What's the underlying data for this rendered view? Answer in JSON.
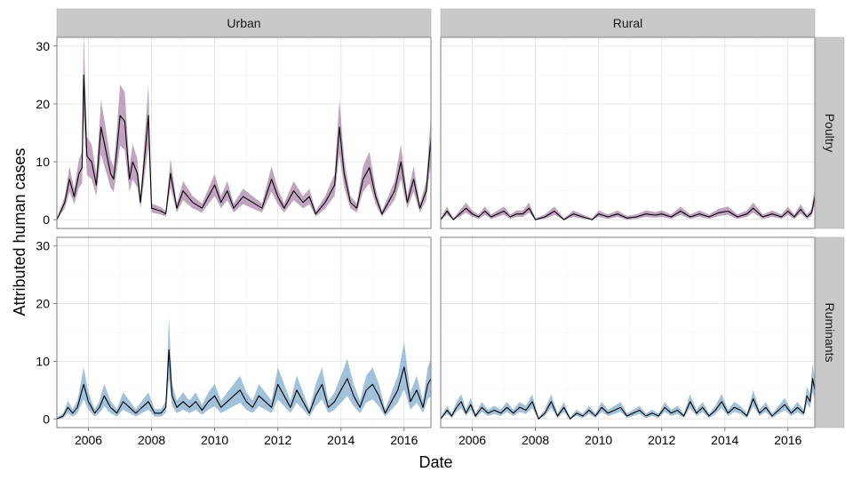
{
  "chart_data": {
    "type": "line",
    "facet_columns": [
      "Urban",
      "Rural"
    ],
    "facet_rows": [
      "Poultry",
      "Ruminants"
    ],
    "xlabel": "Date",
    "ylabel": "Attributed human cases",
    "x_ticks": [
      "2006",
      "2008",
      "2010",
      "2012",
      "2014",
      "2016"
    ],
    "x_range": [
      2005.0,
      2016.85
    ],
    "y_ticks": [
      0,
      10,
      20,
      30
    ],
    "ylim": [
      -1.5,
      31.5
    ],
    "grid": true,
    "legend": "none",
    "band": "uncertainty interval around median line",
    "colors": {
      "Poultry": "#a57ea5",
      "Ruminants": "#7ba7cb",
      "line": "#000000",
      "strip": "#c9c9c9",
      "panel_border": "#7f7f7f",
      "grid": "#ececec"
    },
    "series": [
      {
        "column": "Urban",
        "row": "Poultry",
        "x": [
          2005.0,
          2005.25,
          2005.4,
          2005.55,
          2005.7,
          2005.8,
          2005.85,
          2005.95,
          2006.1,
          2006.25,
          2006.4,
          2006.55,
          2006.7,
          2006.8,
          2006.9,
          2007.0,
          2007.15,
          2007.3,
          2007.4,
          2007.55,
          2007.65,
          2007.8,
          2007.9,
          2008.0,
          2008.3,
          2008.45,
          2008.6,
          2008.8,
          2009.0,
          2009.3,
          2009.6,
          2009.8,
          2010.0,
          2010.2,
          2010.4,
          2010.6,
          2010.9,
          2011.2,
          2011.5,
          2011.8,
          2012.0,
          2012.2,
          2012.5,
          2012.8,
          2013.0,
          2013.2,
          2013.5,
          2013.8,
          2013.95,
          2014.1,
          2014.3,
          2014.5,
          2014.7,
          2014.9,
          2015.1,
          2015.3,
          2015.5,
          2015.7,
          2015.9,
          2016.1,
          2016.3,
          2016.5,
          2016.7,
          2016.85
        ],
        "y": [
          0,
          3,
          7,
          4,
          8,
          9,
          25,
          11,
          10,
          6,
          16,
          12,
          8,
          7,
          12,
          18,
          17,
          7,
          10,
          8,
          3,
          12,
          18,
          2,
          1.5,
          1,
          8,
          2,
          5,
          3,
          2,
          4,
          6,
          3,
          5,
          2,
          4,
          3,
          2,
          7,
          4,
          2,
          5,
          3,
          4,
          1,
          3,
          6,
          16,
          8,
          3,
          2,
          7,
          9,
          4,
          1,
          3,
          5,
          10,
          3,
          7,
          2,
          5,
          14
        ],
        "lower_pct": 0.72,
        "upper_pct": 1.28
      },
      {
        "column": "Rural",
        "row": "Poultry",
        "x": [
          2005.0,
          2005.2,
          2005.4,
          2005.6,
          2005.8,
          2006.0,
          2006.2,
          2006.4,
          2006.6,
          2006.8,
          2007.0,
          2007.2,
          2007.4,
          2007.6,
          2007.8,
          2008.0,
          2008.3,
          2008.6,
          2008.9,
          2009.2,
          2009.5,
          2009.8,
          2010.0,
          2010.3,
          2010.6,
          2010.9,
          2011.2,
          2011.5,
          2011.8,
          2012.0,
          2012.3,
          2012.6,
          2012.9,
          2013.2,
          2013.5,
          2013.8,
          2014.1,
          2014.4,
          2014.7,
          2014.9,
          2015.2,
          2015.5,
          2015.8,
          2016.0,
          2016.2,
          2016.4,
          2016.6,
          2016.75,
          2016.85
        ],
        "y": [
          0,
          1.5,
          0,
          1,
          2,
          1,
          0.5,
          1.5,
          0.5,
          1,
          1.5,
          0.5,
          1,
          1,
          2,
          0,
          0.5,
          1.5,
          0,
          1,
          0.5,
          0,
          1,
          0.5,
          1,
          0.3,
          0.5,
          1,
          0.8,
          1,
          0.5,
          1.5,
          0.5,
          1,
          0.5,
          1.2,
          1.5,
          0.5,
          1,
          2,
          0.5,
          1,
          0.5,
          1.5,
          0.5,
          1.8,
          0.5,
          1.2,
          4
        ],
        "lower_pct": 0.7,
        "upper_pct": 1.35
      },
      {
        "column": "Urban",
        "row": "Ruminants",
        "x": [
          2005.0,
          2005.2,
          2005.35,
          2005.5,
          2005.65,
          2005.85,
          2006.0,
          2006.2,
          2006.35,
          2006.5,
          2006.7,
          2006.9,
          2007.1,
          2007.3,
          2007.5,
          2007.7,
          2007.9,
          2008.1,
          2008.3,
          2008.45,
          2008.55,
          2008.65,
          2008.8,
          2009.0,
          2009.2,
          2009.4,
          2009.6,
          2009.8,
          2010.0,
          2010.2,
          2010.4,
          2010.6,
          2010.8,
          2011.0,
          2011.2,
          2011.4,
          2011.6,
          2011.8,
          2012.0,
          2012.2,
          2012.4,
          2012.6,
          2012.8,
          2013.0,
          2013.2,
          2013.4,
          2013.6,
          2013.8,
          2014.0,
          2014.2,
          2014.4,
          2014.6,
          2014.8,
          2015.0,
          2015.2,
          2015.4,
          2015.6,
          2015.8,
          2016.0,
          2016.2,
          2016.4,
          2016.6,
          2016.75,
          2016.85
        ],
        "y": [
          0,
          0.5,
          2,
          1,
          2,
          6,
          3,
          1,
          2,
          4,
          2,
          1,
          3,
          2,
          1,
          2,
          3,
          1,
          1,
          2,
          12,
          4,
          2,
          3,
          2,
          3,
          1.5,
          3,
          4,
          2,
          3,
          4,
          5,
          3,
          2,
          4,
          3,
          2,
          6,
          4,
          2,
          5,
          3,
          1,
          4,
          6,
          2,
          3,
          5,
          7,
          4,
          2,
          5,
          6,
          4,
          1,
          3,
          5,
          9,
          3,
          5,
          2,
          6,
          7
        ],
        "lower_pct": 0.6,
        "upper_pct": 1.45
      },
      {
        "column": "Rural",
        "row": "Ruminants",
        "x": [
          2005.0,
          2005.2,
          2005.35,
          2005.5,
          2005.65,
          2005.8,
          2005.95,
          2006.1,
          2006.3,
          2006.5,
          2006.7,
          2006.9,
          2007.1,
          2007.3,
          2007.5,
          2007.7,
          2007.9,
          2008.1,
          2008.3,
          2008.5,
          2008.7,
          2008.9,
          2009.1,
          2009.3,
          2009.5,
          2009.7,
          2009.9,
          2010.1,
          2010.3,
          2010.5,
          2010.7,
          2010.9,
          2011.1,
          2011.3,
          2011.5,
          2011.7,
          2011.9,
          2012.1,
          2012.3,
          2012.5,
          2012.7,
          2012.9,
          2013.1,
          2013.3,
          2013.5,
          2013.7,
          2013.9,
          2014.1,
          2014.3,
          2014.5,
          2014.7,
          2014.9,
          2015.1,
          2015.3,
          2015.5,
          2015.7,
          2015.9,
          2016.1,
          2016.3,
          2016.5,
          2016.6,
          2016.7,
          2016.78,
          2016.85
        ],
        "y": [
          0,
          1.5,
          0.5,
          2,
          3,
          1,
          2.5,
          0.5,
          2,
          1,
          1.5,
          1,
          2,
          1,
          2,
          1.5,
          3,
          0,
          1,
          3,
          0.5,
          2,
          0,
          1,
          0.5,
          1.5,
          0.5,
          2,
          1,
          1.5,
          2,
          0.5,
          1,
          1.5,
          0.5,
          1,
          0.5,
          2,
          1,
          1.5,
          0.5,
          3,
          1,
          2,
          0.5,
          1.5,
          3,
          1,
          2,
          1.5,
          0.5,
          3.5,
          1,
          2,
          0.5,
          1.5,
          2.5,
          1,
          2,
          1,
          4,
          3,
          7,
          5
        ],
        "lower_pct": 0.7,
        "upper_pct": 1.35
      }
    ]
  }
}
